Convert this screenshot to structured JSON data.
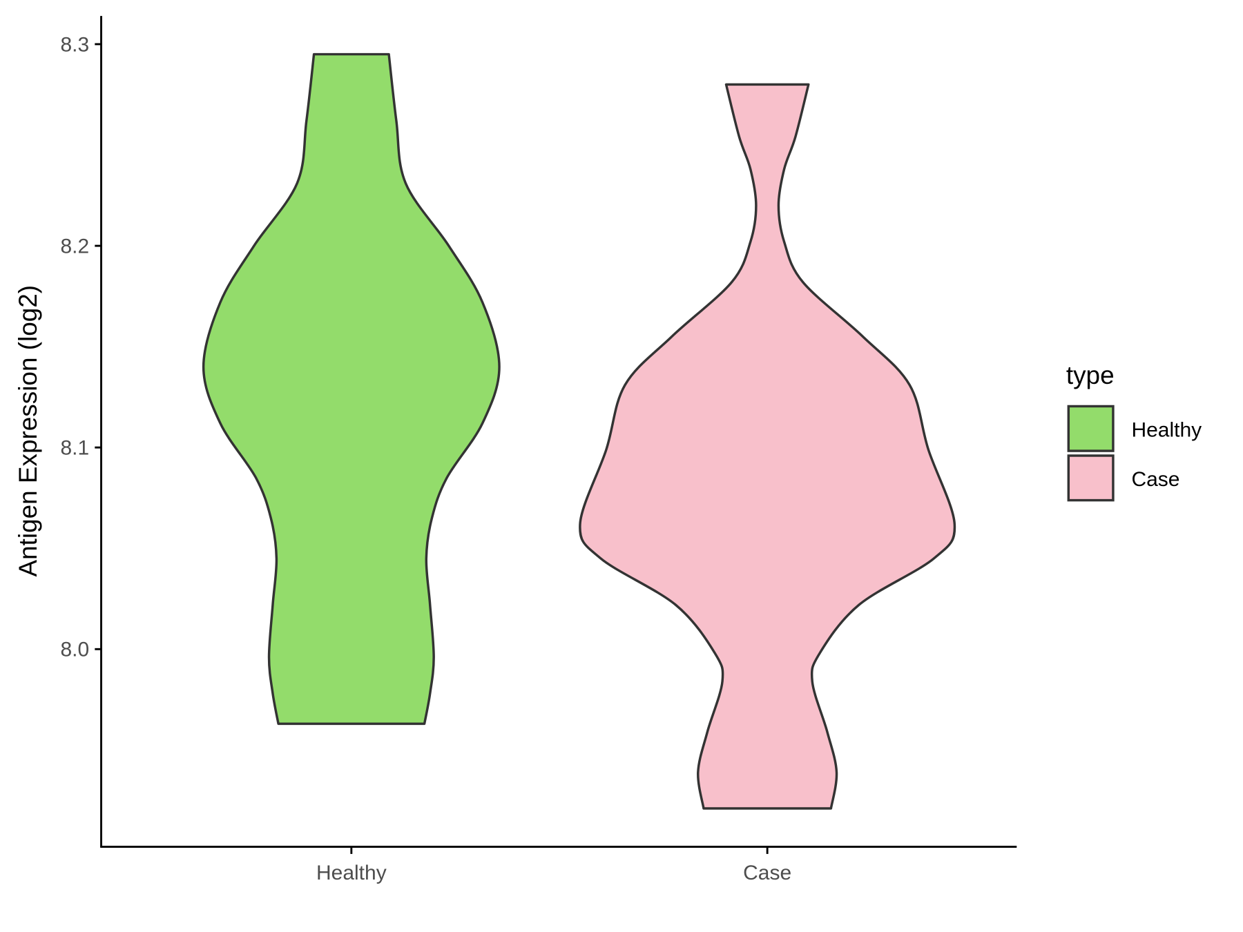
{
  "chart_data": {
    "type": "violin",
    "title": "",
    "xlabel": "",
    "ylabel": "Antigen Expression (log2)",
    "ylim": [
      7.902,
      8.314
    ],
    "yticks": [
      8.0,
      8.1,
      8.2,
      8.3
    ],
    "ytick_labels": [
      "8.0",
      "8.1",
      "8.2",
      "8.3"
    ],
    "categories": [
      "Healthy",
      "Case"
    ],
    "grid": false,
    "legend": {
      "title": "type",
      "placement": "right",
      "entries": [
        "Healthy",
        "Case"
      ]
    },
    "series": [
      {
        "name": "Healthy",
        "color": "#93dc6b",
        "min": 7.963,
        "max": 8.295,
        "density_profile": [
          [
            8.295,
            0.2
          ],
          [
            8.262,
            0.24
          ],
          [
            8.231,
            0.29
          ],
          [
            8.2,
            0.52
          ],
          [
            8.172,
            0.7
          ],
          [
            8.14,
            0.79
          ],
          [
            8.112,
            0.7
          ],
          [
            8.085,
            0.51
          ],
          [
            8.065,
            0.43
          ],
          [
            8.045,
            0.4
          ],
          [
            8.022,
            0.42
          ],
          [
            7.996,
            0.44
          ],
          [
            7.978,
            0.42
          ],
          [
            7.963,
            0.39
          ]
        ]
      },
      {
        "name": "Case",
        "color": "#f8c0cb",
        "min": 7.921,
        "max": 8.28,
        "density_profile": [
          [
            8.28,
            0.22
          ],
          [
            8.254,
            0.15
          ],
          [
            8.238,
            0.09
          ],
          [
            8.22,
            0.06
          ],
          [
            8.202,
            0.09
          ],
          [
            8.182,
            0.19
          ],
          [
            8.155,
            0.51
          ],
          [
            8.131,
            0.76
          ],
          [
            8.099,
            0.86
          ],
          [
            8.062,
            1.0
          ],
          [
            8.045,
            0.89
          ],
          [
            8.022,
            0.49
          ],
          [
            7.998,
            0.28
          ],
          [
            7.984,
            0.24
          ],
          [
            7.959,
            0.32
          ],
          [
            7.939,
            0.37
          ],
          [
            7.921,
            0.34
          ]
        ]
      }
    ],
    "outline_color": "#333333"
  }
}
